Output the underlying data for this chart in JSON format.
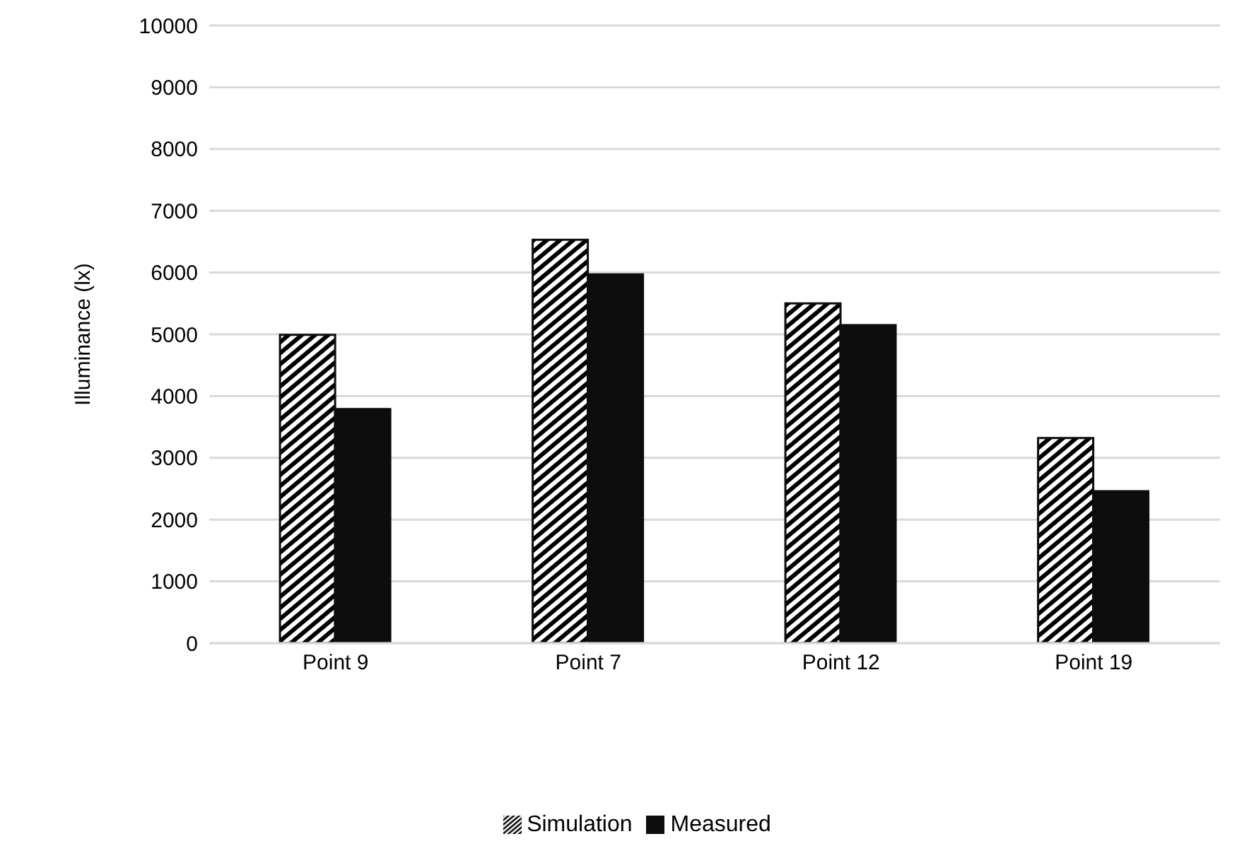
{
  "chart_data": {
    "type": "bar",
    "ylabel": "Illuminance (lx)",
    "categories": [
      "Point 9",
      "Point 7",
      "Point 12",
      "Point 19"
    ],
    "series": [
      {
        "name": "Simulation",
        "color": "#000000",
        "values": [
          4990,
          6530,
          5500,
          3320
        ]
      },
      {
        "name": "Measured",
        "color": "#0d0d0d",
        "values": [
          3790,
          5970,
          5150,
          2460
        ]
      }
    ],
    "ylim": [
      0,
      10000
    ],
    "yticks": [
      0,
      1000,
      2000,
      3000,
      4000,
      5000,
      6000,
      7000,
      8000,
      9000,
      10000
    ],
    "grid": "y",
    "legend": "bottom"
  }
}
